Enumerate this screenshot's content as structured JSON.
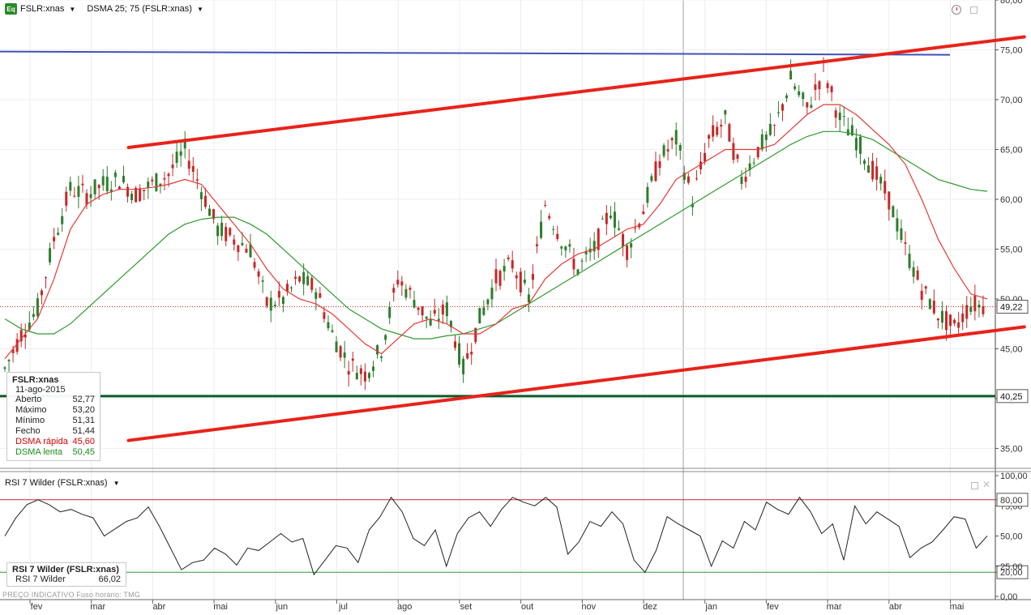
{
  "toolbar": {
    "symbol": "FSLR:xnas",
    "indicator": "DSMA 25; 75 (FSLR:xnas)"
  },
  "info_box": {
    "title": "FSLR:xnas",
    "date": "11-ago-2015",
    "rows": [
      {
        "label": "Aberto",
        "value": "52,77"
      },
      {
        "label": "Máximo",
        "value": "53,20"
      },
      {
        "label": "Mínimo",
        "value": "51,31"
      },
      {
        "label": "Fecho",
        "value": "51,44"
      },
      {
        "label": "DSMA rápida",
        "value": "45,60"
      },
      {
        "label": "DSMA lenta",
        "value": "50,45"
      }
    ]
  },
  "rsi": {
    "title": "RSI 7 Wilder (FSLR:xnas)",
    "box_title": "RSI 7 Wilder (FSLR:xnas)",
    "box_label": "RSI 7 Wilder",
    "box_value": "66,02"
  },
  "footer": "PREÇO INDICATIVO   Fuso horário: TMG",
  "colors": {
    "candle_up": "#2e7d2e",
    "candle_down": "#c62828",
    "fast_ma": "#e53935",
    "slow_ma": "#2e9a2e",
    "trend": "#e8231a",
    "resistance": "#3f51b5",
    "support": "#0d5a2a",
    "rsi_line": "#222222"
  },
  "chart_data": [
    {
      "type": "candlestick",
      "title": "FSLR:xnas",
      "x_ticks": [
        "fev",
        "mar",
        "abr",
        "mai",
        "jun",
        "jul",
        "ago",
        "set",
        "out",
        "nov",
        "dez",
        "jan",
        "fev",
        "mar",
        "abr",
        "mai"
      ],
      "y_ticks": [
        "35,00",
        "40,00",
        "45,00",
        "50,00",
        "55,00",
        "60,00",
        "65,00",
        "70,00",
        "75,00",
        "80,00"
      ],
      "ylim": [
        33,
        80
      ],
      "grid": true,
      "price_labels": [
        "49,22",
        "40,25"
      ],
      "last_price": 49.22,
      "horizontal_lines": [
        {
          "price": 40.25,
          "color": "support"
        },
        {
          "price": 74.5,
          "color": "resistance"
        }
      ],
      "trend_lines": [
        {
          "name": "upper",
          "from": [
            1.5,
            65.2
          ],
          "to": [
            16.1,
            76.3
          ]
        },
        {
          "name": "lower",
          "from": [
            1.5,
            35.8
          ],
          "to": [
            16.1,
            47.2
          ]
        }
      ],
      "series": [
        {
          "name": "Preço",
          "values": [
            43.0,
            46.5,
            49.0,
            56.0,
            61.0,
            60.5,
            61.5,
            62.0,
            60.5,
            61.5,
            62.5,
            65.0,
            61.0,
            57.0,
            56.0,
            55.0,
            49.5,
            50.0,
            52.0,
            51.0,
            46.5,
            43.5,
            42.5,
            45.0,
            52.0,
            50.0,
            47.5,
            49.0,
            43.0,
            48.0,
            52.0,
            53.5,
            50.0,
            59.5,
            56.0,
            53.0,
            55.0,
            59.0,
            55.0,
            59.0,
            64.0,
            66.0,
            60.0,
            66.0,
            68.0,
            62.0,
            65.0,
            67.0,
            72.0,
            69.0,
            73.0,
            68.0,
            66.0,
            63.0,
            60.0,
            55.0,
            51.0,
            48.5,
            47.0,
            49.5,
            49.2
          ]
        },
        {
          "name": "DSMA rápida",
          "values": [
            44.0,
            46.0,
            48.0,
            52.0,
            57.0,
            59.5,
            60.5,
            61.0,
            61.0,
            61.2,
            61.5,
            62.0,
            61.5,
            59.5,
            57.5,
            55.5,
            53.0,
            51.0,
            50.0,
            49.5,
            48.5,
            47.0,
            45.5,
            44.5,
            46.0,
            47.5,
            48.0,
            47.5,
            46.5,
            46.5,
            47.5,
            49.0,
            49.5,
            52.0,
            53.5,
            54.5,
            55.0,
            56.0,
            57.0,
            57.5,
            59.5,
            62.0,
            63.0,
            64.0,
            65.0,
            65.0,
            65.0,
            65.5,
            67.0,
            68.5,
            69.5,
            69.5,
            68.5,
            67.0,
            65.5,
            63.5,
            60.0,
            56.0,
            53.0,
            50.5,
            50.0
          ]
        },
        {
          "name": "DSMA lenta",
          "values": [
            48.0,
            47.0,
            46.5,
            46.5,
            47.5,
            49.0,
            50.5,
            52.0,
            53.5,
            55.0,
            56.5,
            57.5,
            58.0,
            58.2,
            58.2,
            57.5,
            56.5,
            55.0,
            53.5,
            52.0,
            50.5,
            49.0,
            48.0,
            47.0,
            46.5,
            46.0,
            46.0,
            46.3,
            46.5,
            47.0,
            47.5,
            48.5,
            49.5,
            50.5,
            51.5,
            52.5,
            53.5,
            54.5,
            55.5,
            56.5,
            57.5,
            58.5,
            59.5,
            60.5,
            61.5,
            62.5,
            63.5,
            64.5,
            65.5,
            66.3,
            66.8,
            66.8,
            66.5,
            66.0,
            65.0,
            64.0,
            63.0,
            62.0,
            61.5,
            61.0,
            60.8
          ]
        }
      ]
    },
    {
      "type": "line",
      "title": "RSI 7 Wilder (FSLR:xnas)",
      "y_ticks": [
        "0,00",
        "20,00",
        "25,00",
        "50,00",
        "75,00",
        "80,00",
        "100,00"
      ],
      "ylim": [
        0,
        100
      ],
      "reference_lines": [
        80,
        20
      ],
      "series": [
        {
          "name": "RSI 7 Wilder",
          "values": [
            50,
            65,
            76,
            80,
            76,
            70,
            72,
            68,
            65,
            50,
            56,
            62,
            65,
            74,
            58,
            40,
            22,
            28,
            30,
            40,
            35,
            26,
            40,
            38,
            45,
            52,
            45,
            48,
            18,
            30,
            42,
            40,
            28,
            55,
            66,
            82,
            70,
            48,
            42,
            55,
            25,
            52,
            65,
            70,
            58,
            72,
            82,
            78,
            75,
            82,
            74,
            35,
            45,
            62,
            58,
            70,
            60,
            30,
            20,
            38,
            66,
            60,
            55,
            50,
            25,
            46,
            40,
            62,
            55,
            78,
            72,
            68,
            82,
            70,
            52,
            60,
            30,
            75,
            60,
            70,
            64,
            58,
            32,
            40,
            45,
            55,
            66,
            64,
            40,
            50
          ]
        }
      ]
    }
  ]
}
